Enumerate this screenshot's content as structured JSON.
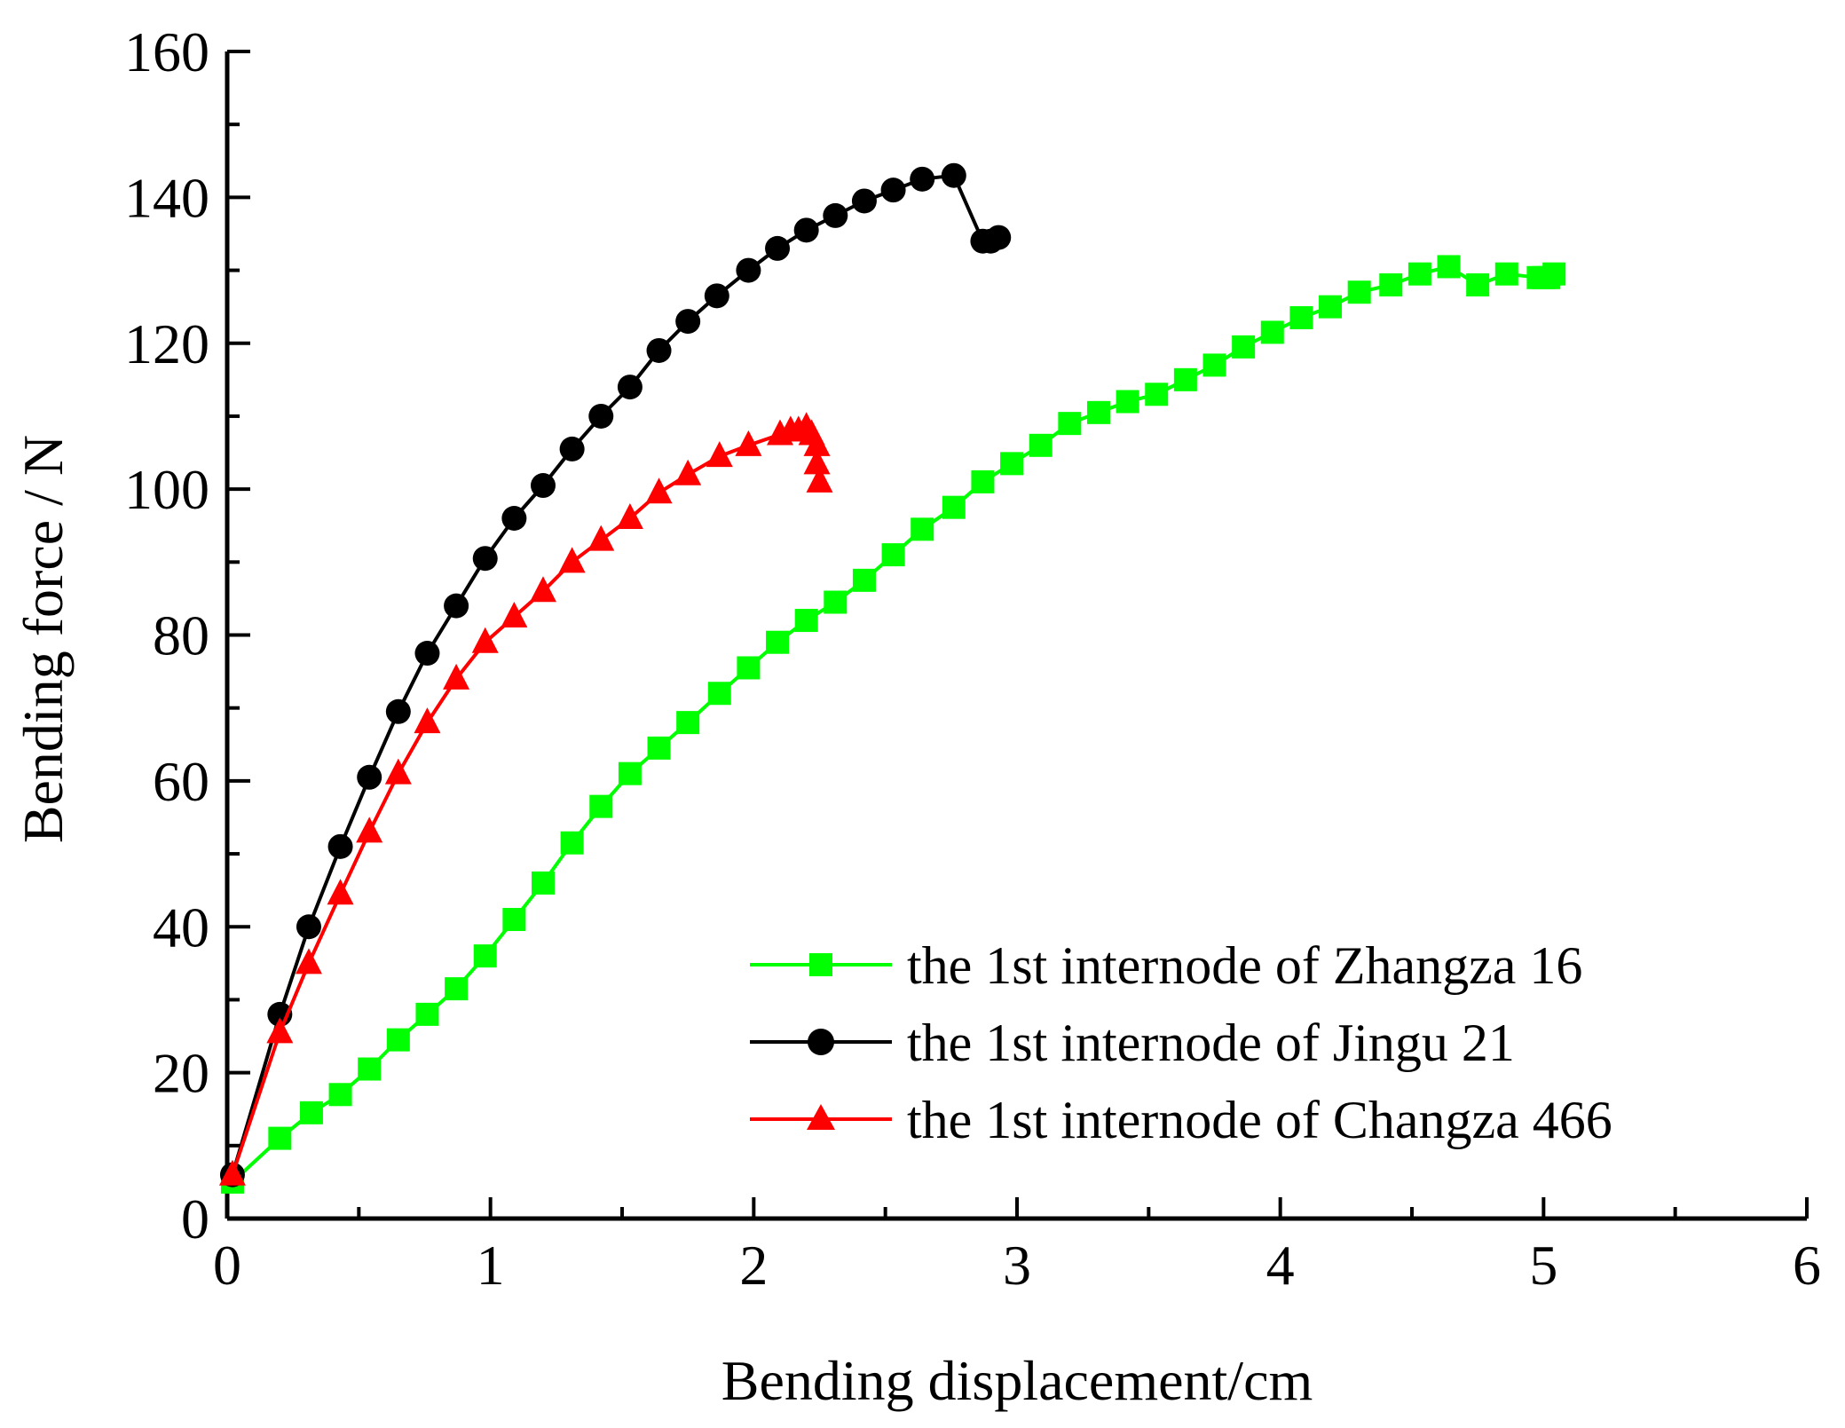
{
  "chart_data": {
    "type": "line",
    "title": "",
    "xlabel": "Bending displacement/cm",
    "ylabel": "Bending force / N",
    "xlim": [
      0,
      6
    ],
    "ylim": [
      0,
      160
    ],
    "xticks": [
      0,
      1,
      2,
      3,
      4,
      5,
      6
    ],
    "xtick_labels": [
      "0",
      "1",
      "2",
      "3",
      "4",
      "5",
      "6"
    ],
    "yticks": [
      0,
      20,
      40,
      60,
      80,
      100,
      120,
      140,
      160
    ],
    "ytick_labels": [
      "0",
      "20",
      "40",
      "60",
      "80",
      "100",
      "120",
      "140",
      "160"
    ],
    "grid": false,
    "legend_position": "bottom-right",
    "series": [
      {
        "name": "the 1st internode of Zhangza 16",
        "color": "#00ff00",
        "marker": "square",
        "x": [
          0.02,
          0.2,
          0.32,
          0.43,
          0.54,
          0.65,
          0.76,
          0.87,
          0.98,
          1.09,
          1.2,
          1.31,
          1.42,
          1.53,
          1.64,
          1.75,
          1.87,
          1.98,
          2.09,
          2.2,
          2.31,
          2.42,
          2.53,
          2.64,
          2.76,
          2.87,
          2.98,
          3.09,
          3.2,
          3.31,
          3.42,
          3.53,
          3.64,
          3.75,
          3.86,
          3.97,
          4.08,
          4.19,
          4.3,
          4.42,
          4.53,
          4.64,
          4.75,
          4.86,
          4.98,
          5.0,
          5.02,
          5.04
        ],
        "y": [
          5,
          11,
          14.5,
          17,
          20.5,
          24.5,
          28,
          31.5,
          36,
          41,
          46,
          51.5,
          56.5,
          61,
          64.5,
          68,
          72,
          75.5,
          79,
          82,
          84.5,
          87.5,
          91,
          94.5,
          97.5,
          101,
          103.5,
          106,
          109,
          110.5,
          112,
          113,
          115,
          117,
          119.5,
          121.5,
          123.5,
          125,
          127,
          128,
          129.5,
          130.5,
          128,
          129.5,
          129,
          129,
          129,
          129.5
        ]
      },
      {
        "name": "the 1st internode of Jingu 21",
        "color": "#000000",
        "marker": "circle",
        "x": [
          0.02,
          0.2,
          0.31,
          0.43,
          0.54,
          0.65,
          0.76,
          0.87,
          0.98,
          1.09,
          1.2,
          1.31,
          1.42,
          1.53,
          1.64,
          1.75,
          1.86,
          1.98,
          2.09,
          2.2,
          2.31,
          2.42,
          2.53,
          2.64,
          2.76,
          2.87,
          2.9,
          2.93
        ],
        "y": [
          6,
          28,
          40,
          51,
          60.5,
          69.5,
          77.5,
          84,
          90.5,
          96,
          100.5,
          105.5,
          110,
          114,
          119,
          123,
          126.5,
          130,
          133,
          135.5,
          137.5,
          139.5,
          141,
          142.5,
          143,
          134,
          134,
          134.5
        ]
      },
      {
        "name": "the 1st internode of Changza 466",
        "color": "#ff0000",
        "marker": "triangle",
        "x": [
          0.02,
          0.2,
          0.31,
          0.43,
          0.54,
          0.65,
          0.76,
          0.87,
          0.98,
          1.09,
          1.2,
          1.31,
          1.42,
          1.53,
          1.64,
          1.75,
          1.87,
          1.98,
          2.1,
          2.14,
          2.17,
          2.2,
          2.22,
          2.24,
          2.24,
          2.25
        ],
        "y": [
          6,
          25.5,
          35,
          44.5,
          53,
          61,
          68,
          74,
          79,
          82.5,
          86,
          90,
          93,
          96,
          99.5,
          102,
          104.5,
          106,
          107.5,
          108,
          108,
          108.5,
          107.5,
          106,
          103.5,
          101
        ]
      }
    ]
  }
}
